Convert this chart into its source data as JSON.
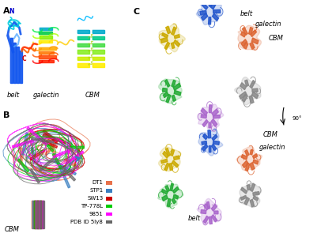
{
  "panel_A_label": "A",
  "panel_B_label": "B",
  "panel_C_label": "C",
  "panel_A_sublabels": [
    "belt",
    "galectin",
    "CBM"
  ],
  "panel_A_N_label": "N",
  "panel_A_C_label": "C",
  "panel_B_CBM_label": "CBM",
  "panel_C_labels_top": [
    "belt",
    "galectin",
    "CBM"
  ],
  "panel_C_labels_bottom": [
    "CBM",
    "galectin",
    "belt"
  ],
  "panel_C_rotation_label": "90°",
  "legend_entries": [
    {
      "name": "DT1",
      "color": "#E8714A"
    },
    {
      "name": "STP1",
      "color": "#3A7FC1"
    },
    {
      "name": "SW13",
      "color": "#CC0000"
    },
    {
      "name": "TP-778L",
      "color": "#00CC00"
    },
    {
      "name": "9851",
      "color": "#FF00FF"
    },
    {
      "name": "PDB ID 5ly8",
      "color": "#666666"
    }
  ],
  "background_color": "#FFFFFF",
  "label_fontsize": 6.0,
  "panel_label_fontsize": 8,
  "legend_fontsize": 5.0,
  "N_color": "#0000CC",
  "C_color": "#CC0000",
  "subunit_colors_C": [
    "#E8714A",
    "#3A7FC1",
    "#DDAA00",
    "#22BB22",
    "#CC88CC",
    "#888888"
  ],
  "panel_A_belt_color": "#1155FF",
  "panel_A_rainbow": [
    "#FF0000",
    "#FF6600",
    "#FFAA00",
    "#FFFF00",
    "#00CC00",
    "#00CCFF",
    "#0000FF",
    "#8800CC"
  ],
  "panel_A_cbm_colors": [
    "#FFFF00",
    "#BBFF00",
    "#44FF44",
    "#00FFAA",
    "#00BBFF"
  ]
}
